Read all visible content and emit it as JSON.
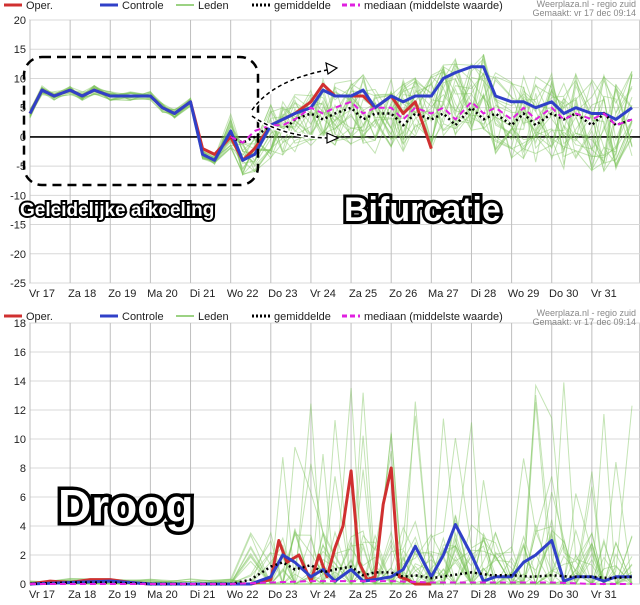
{
  "source": {
    "site": "Weerplaza.nl - regio zuid",
    "timestamp": "Gemaakt: vr 17 dec 09:14"
  },
  "legend": {
    "items": [
      {
        "key": "oper",
        "label": "Oper.",
        "color": "#d03030"
      },
      {
        "key": "controle",
        "label": "Controle",
        "color": "#3040c8"
      },
      {
        "key": "leden",
        "label": "Leden",
        "color": "#7cc45a"
      },
      {
        "key": "gemiddelde",
        "label": "gemiddelde",
        "color": "#000000"
      },
      {
        "key": "mediaan",
        "label": "mediaan (middelste waarde)",
        "color": "#e020e0"
      }
    ]
  },
  "x_ticks": [
    "Vr 17",
    "Za 18",
    "Zo 19",
    "Ma 20",
    "Di 21",
    "Wo 22",
    "Do 23",
    "Vr 24",
    "Za 25",
    "Zo 26",
    "Ma 27",
    "Di 28",
    "Wo 29",
    "Do 30",
    "Vr 31"
  ],
  "annotations": {
    "afkoeling": "Geleidelijke afkoeling",
    "bifurcatie": "Bifurcatie",
    "droog": "Droog"
  },
  "chart_data": [
    {
      "type": "line",
      "ylim": [
        -25,
        20
      ],
      "yticks": [
        -25,
        -20,
        -15,
        -10,
        -5,
        0,
        5,
        10,
        15,
        20
      ],
      "grid": true,
      "legend_position": "top",
      "x_range": [
        0,
        15
      ],
      "series": [
        {
          "name": "Oper.",
          "color": "#d03030",
          "x": [
            0,
            0.3,
            0.6,
            1,
            1.3,
            1.6,
            2,
            2.5,
            3,
            3.3,
            3.6,
            4,
            4.3,
            4.6,
            5,
            5.3,
            5.6,
            6,
            6.3,
            6.6,
            7,
            7.3,
            7.6,
            8,
            8.3,
            8.6,
            9,
            9.3,
            9.6,
            10
          ],
          "values": [
            4,
            8,
            7,
            8,
            7,
            8,
            7,
            7,
            7,
            5,
            4,
            6,
            -2,
            -3,
            0,
            -4,
            -2,
            2,
            3,
            4,
            6,
            9,
            7,
            7,
            7,
            5,
            7,
            4,
            6,
            -2
          ]
        },
        {
          "name": "Controle",
          "color": "#3040c8",
          "x": [
            0,
            0.3,
            0.6,
            1,
            1.3,
            1.6,
            2,
            2.5,
            3,
            3.3,
            3.6,
            4,
            4.3,
            4.6,
            5,
            5.3,
            5.6,
            6,
            6.3,
            6.6,
            7,
            7.3,
            7.6,
            8,
            8.3,
            8.6,
            9,
            9.3,
            9.6,
            10,
            10.3,
            10.6,
            11,
            11.3,
            11.6,
            12,
            12.3,
            12.6,
            13,
            13.3,
            13.6,
            14,
            14.3,
            14.6,
            15
          ],
          "values": [
            4,
            8,
            7,
            8,
            7,
            8,
            7,
            7,
            7,
            5,
            4,
            6,
            -3,
            -4,
            1,
            -4,
            -3,
            2,
            3,
            4,
            5,
            8,
            7,
            7,
            8,
            5,
            7,
            6,
            7,
            7,
            10,
            11,
            12,
            12,
            7,
            6,
            6,
            5,
            6,
            4,
            5,
            4,
            4,
            3,
            5
          ]
        },
        {
          "name": "gemiddelde",
          "color": "#000000",
          "x": [
            5,
            5.3,
            5.6,
            6,
            6.3,
            6.6,
            7,
            7.3,
            7.6,
            8,
            8.3,
            8.6,
            9,
            9.3,
            9.6,
            10,
            10.3,
            10.6,
            11,
            11.3,
            11.6,
            12,
            12.3,
            12.6,
            13,
            13.3,
            13.6,
            14,
            14.3,
            14.6,
            15
          ],
          "values": [
            0,
            -1,
            0,
            2,
            1,
            3,
            4,
            3,
            4,
            5,
            3,
            4,
            4,
            2,
            4,
            3,
            4,
            2,
            5,
            3,
            4,
            2,
            4,
            2,
            4,
            3,
            4,
            2,
            4,
            2,
            3
          ]
        },
        {
          "name": "mediaan (middelste waarde)",
          "color": "#e020e0",
          "x": [
            5,
            5.3,
            5.6,
            6,
            6.3,
            6.6,
            7,
            7.3,
            7.6,
            8,
            8.3,
            8.6,
            9,
            9.3,
            9.6,
            10,
            10.3,
            10.6,
            11,
            11.3,
            11.6,
            12,
            12.3,
            12.6,
            13,
            13.3,
            13.6,
            14,
            14.3,
            14.6,
            15
          ],
          "values": [
            0,
            -1,
            1,
            2,
            2,
            3,
            5,
            4,
            5,
            6,
            4,
            5,
            5,
            3,
            5,
            4,
            5,
            3,
            6,
            4,
            5,
            3,
            5,
            3,
            5,
            3,
            4,
            3,
            4,
            2,
            3
          ]
        }
      ]
    },
    {
      "type": "line",
      "ylim": [
        0,
        18
      ],
      "yticks": [
        0,
        2,
        4,
        6,
        8,
        10,
        12,
        14,
        16,
        18
      ],
      "grid": true,
      "legend_position": "top",
      "x_range": [
        0,
        15
      ],
      "series": [
        {
          "name": "Oper.",
          "color": "#d03030",
          "x": [
            0,
            0.5,
            1,
            1.5,
            2,
            2.5,
            3,
            3.5,
            4,
            4.5,
            5,
            5.5,
            6,
            6.2,
            6.4,
            6.7,
            7,
            7.2,
            7.4,
            7.6,
            7.8,
            8,
            8.2,
            8.4,
            8.6,
            8.8,
            9,
            9.2,
            9.4,
            9.6,
            9.8,
            10
          ],
          "values": [
            0,
            0.2,
            0.1,
            0.3,
            0.3,
            0.1,
            0,
            0,
            0,
            0,
            0,
            0,
            0.3,
            3,
            1.5,
            2,
            0.2,
            2,
            0.5,
            2.5,
            4,
            7.8,
            1.5,
            0.3,
            0.5,
            5.5,
            8,
            0.5,
            0.3,
            0,
            0,
            0
          ]
        },
        {
          "name": "Controle",
          "color": "#3040c8",
          "x": [
            0,
            1,
            2,
            3,
            4,
            5,
            5.5,
            6,
            6.3,
            6.6,
            7,
            7.3,
            7.6,
            8,
            8.3,
            8.6,
            9,
            9.3,
            9.6,
            10,
            10.3,
            10.6,
            11,
            11.3,
            11.6,
            12,
            12.3,
            12.6,
            13,
            13.3,
            13.6,
            14,
            14.3,
            14.6,
            15
          ],
          "values": [
            0,
            0.1,
            0.2,
            0,
            0,
            0,
            0,
            0.5,
            2,
            1.5,
            0.5,
            1,
            0.2,
            1,
            0.2,
            0.3,
            0.5,
            1,
            2.6,
            0.5,
            2,
            4.1,
            2,
            0.2,
            0.5,
            0.5,
            1.5,
            2,
            3,
            0.2,
            0.5,
            0.5,
            0.2,
            0.5,
            0.5
          ]
        },
        {
          "name": "gemiddelde",
          "color": "#000000",
          "x": [
            0,
            1,
            2,
            3,
            4,
            5,
            5.5,
            6,
            6.3,
            6.6,
            7,
            7.3,
            7.6,
            8,
            8.3,
            8.6,
            9,
            9.3,
            9.6,
            10,
            10.5,
            11,
            11.5,
            12,
            12.5,
            13,
            13.5,
            14,
            14.5,
            15
          ],
          "values": [
            0,
            0.1,
            0.1,
            0,
            0,
            0,
            0.3,
            1.2,
            1.5,
            1,
            1.3,
            0.8,
            1,
            1.2,
            0.6,
            0.8,
            0.8,
            0.5,
            0.6,
            0.4,
            0.6,
            0.8,
            0.6,
            0.6,
            0.5,
            0.6,
            0.5,
            0.5,
            0.4,
            0.5
          ]
        },
        {
          "name": "mediaan (middelste waarde)",
          "color": "#e020e0",
          "x": [
            0,
            1,
            2,
            3,
            4,
            5,
            6,
            7,
            8,
            9,
            10,
            11,
            12,
            13,
            14,
            15
          ],
          "values": [
            0,
            0,
            0,
            0,
            0,
            0,
            0.1,
            0.2,
            0.2,
            0.2,
            0.1,
            0.1,
            0.1,
            0.1,
            0,
            0
          ]
        }
      ]
    }
  ]
}
